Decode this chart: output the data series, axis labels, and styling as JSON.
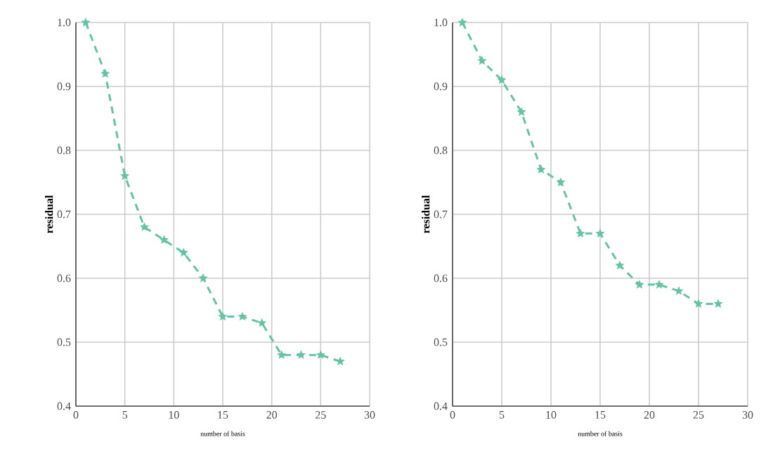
{
  "chart_data": [
    {
      "type": "line",
      "xlabel": "number of basis",
      "ylabel": "residual",
      "x": [
        1,
        3,
        5,
        7,
        9,
        11,
        13,
        15,
        17,
        19,
        21,
        23,
        25,
        27
      ],
      "series": [
        {
          "color": "#66c2a5",
          "values": [
            1.0,
            0.92,
            0.76,
            0.68,
            0.66,
            0.64,
            0.6,
            0.54,
            0.54,
            0.53,
            0.48,
            0.48,
            0.48,
            0.47
          ]
        }
      ],
      "xlim": [
        0,
        30
      ],
      "ylim": [
        0.4,
        1.0
      ],
      "xticks": [
        0,
        5,
        10,
        15,
        20,
        25,
        30
      ],
      "yticks": [
        0.4,
        0.5,
        0.6,
        0.7,
        0.8,
        0.9,
        {
          "value": 1.0,
          "label": "1.0"
        }
      ],
      "grid": true,
      "marker": "star",
      "line_style": "dashed"
    },
    {
      "type": "line",
      "xlabel": "number of basis",
      "ylabel": "residual",
      "x": [
        1,
        3,
        5,
        7,
        9,
        11,
        13,
        15,
        17,
        19,
        21,
        23,
        25,
        27
      ],
      "series": [
        {
          "color": "#66c2a5",
          "values": [
            1.0,
            0.94,
            0.91,
            0.86,
            0.77,
            0.75,
            0.67,
            0.67,
            0.62,
            0.59,
            0.59,
            0.58,
            0.56,
            0.56
          ]
        }
      ],
      "xlim": [
        0,
        30
      ],
      "ylim": [
        0.4,
        1.0
      ],
      "xticks": [
        0,
        5,
        10,
        15,
        20,
        25,
        30
      ],
      "yticks": [
        0.4,
        0.5,
        0.6,
        0.7,
        0.8,
        0.9,
        {
          "value": 1.0,
          "label": "1.0"
        }
      ],
      "grid": true,
      "marker": "star",
      "line_style": "dashed"
    }
  ]
}
